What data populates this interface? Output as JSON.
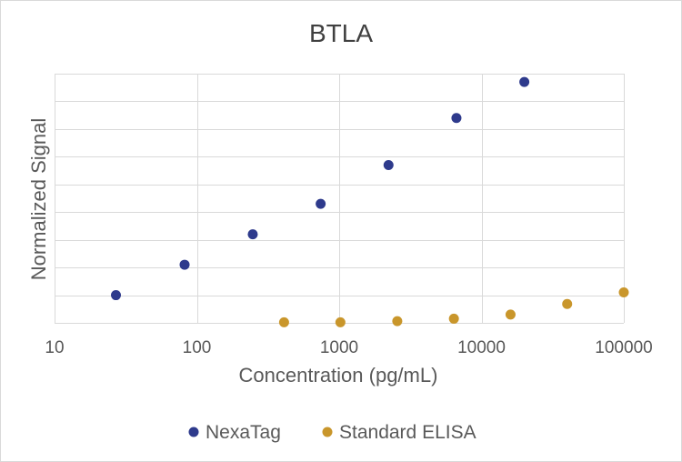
{
  "chart_data": {
    "type": "scatter",
    "title": "BTLA",
    "xlabel": "Concentration (pg/mL)",
    "ylabel": "Normalized Signal",
    "x_scale": "log",
    "xlim": [
      10,
      100000
    ],
    "x_ticks": [
      "10",
      "100",
      "1000",
      "10000",
      "100000"
    ],
    "ylim": [
      0,
      9
    ],
    "grid": true,
    "legend_position": "bottom",
    "series": [
      {
        "name": "NexaTag",
        "color": "#2e3a8c",
        "x": [
          27,
          82,
          247,
          741,
          2222,
          6667,
          20000
        ],
        "y": [
          1.0,
          2.1,
          3.2,
          4.3,
          5.7,
          7.4,
          8.7
        ]
      },
      {
        "name": "Standard ELISA",
        "color": "#c9962b",
        "x": [
          410,
          1020,
          2560,
          6400,
          16000,
          40000,
          100000
        ],
        "y": [
          0.02,
          0.02,
          0.06,
          0.15,
          0.3,
          0.68,
          1.1
        ]
      }
    ]
  }
}
